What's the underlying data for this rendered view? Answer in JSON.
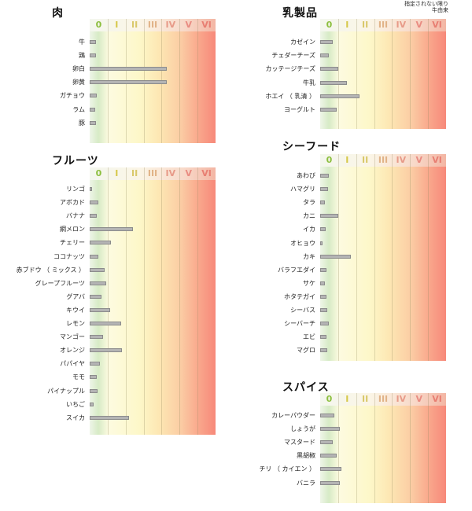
{
  "note": {
    "line1": "指定されない限り",
    "line2": "牛由来"
  },
  "chart_data": [
    {
      "type": "bar",
      "title": "肉",
      "xtick_labels": [
        "0",
        "I",
        "II",
        "III",
        "IV",
        "V",
        "VI"
      ],
      "categories": [
        "牛",
        "鶏",
        "卵白",
        "卵黄",
        "ガチョウ",
        "ラム",
        "豚"
      ],
      "values": [
        0.35,
        0.35,
        4.3,
        4.3,
        0.4,
        0.3,
        0.35
      ],
      "xlim": [
        0,
        7
      ]
    },
    {
      "type": "bar",
      "title": "乳製品",
      "xtick_labels": [
        "0",
        "I",
        "II",
        "III",
        "IV",
        "V",
        "VI"
      ],
      "categories": [
        "カゼイン",
        "チェダーチーズ",
        "カッテージチーズ",
        "牛乳",
        "ホエイ （ 乳清 ）",
        "ヨーグルト"
      ],
      "values": [
        0.7,
        0.5,
        1.0,
        1.5,
        2.2,
        0.9
      ],
      "xlim": [
        0,
        7
      ]
    },
    {
      "type": "bar",
      "title": "フルーツ",
      "xtick_labels": [
        "0",
        "I",
        "II",
        "III",
        "IV",
        "V",
        "VI"
      ],
      "categories": [
        "リンゴ",
        "アボカド",
        "バナナ",
        "網メロン",
        "チェリー",
        "ココナッツ",
        "赤ブドウ （ ミックス ）",
        "グレープフルーツ",
        "グアバ",
        "キウイ",
        "レモン",
        "マンゴー",
        "オレンジ",
        "パパイヤ",
        "モモ",
        "パイナップル",
        "いちご",
        "スイカ"
      ],
      "values": [
        0.15,
        0.5,
        0.4,
        2.4,
        1.2,
        0.5,
        0.85,
        0.9,
        0.65,
        1.15,
        1.75,
        0.75,
        1.8,
        0.55,
        0.4,
        0.45,
        0.2,
        2.2
      ],
      "xlim": [
        0,
        7
      ]
    },
    {
      "type": "bar",
      "title": "シーフード",
      "xtick_labels": [
        "0",
        "I",
        "II",
        "III",
        "IV",
        "V",
        "VI"
      ],
      "categories": [
        "あわび",
        "ハマグリ",
        "タラ",
        "カニ",
        "イカ",
        "オヒョウ",
        "カキ",
        "バラフエダイ",
        "サケ",
        "ホタテガイ",
        "シーバス",
        "シーバーチ",
        "エビ",
        "マグロ"
      ],
      "values": [
        0.5,
        0.45,
        0.25,
        1.0,
        0.3,
        0.15,
        1.7,
        0.35,
        0.25,
        0.35,
        0.4,
        0.5,
        0.35,
        0.4
      ],
      "xlim": [
        0,
        7
      ]
    },
    {
      "type": "bar",
      "title": "スパイス",
      "xtick_labels": [
        "0",
        "I",
        "II",
        "III",
        "IV",
        "V",
        "VI"
      ],
      "categories": [
        "カレーパウダー",
        "しょうが",
        "マスタード",
        "黒胡椒",
        "チリ （ カイエン ）",
        "バニラ"
      ],
      "values": [
        0.8,
        1.1,
        0.7,
        0.9,
        1.2,
        1.1
      ],
      "xlim": [
        0,
        7
      ]
    }
  ],
  "colors": {
    "c0": "#8cbf3f",
    "c1": "#d6c84a",
    "c2": "#d9c86a",
    "c3": "#e1b388",
    "c4": "#e79a88",
    "c5": "#e98c82",
    "c6": "#e87e72"
  }
}
